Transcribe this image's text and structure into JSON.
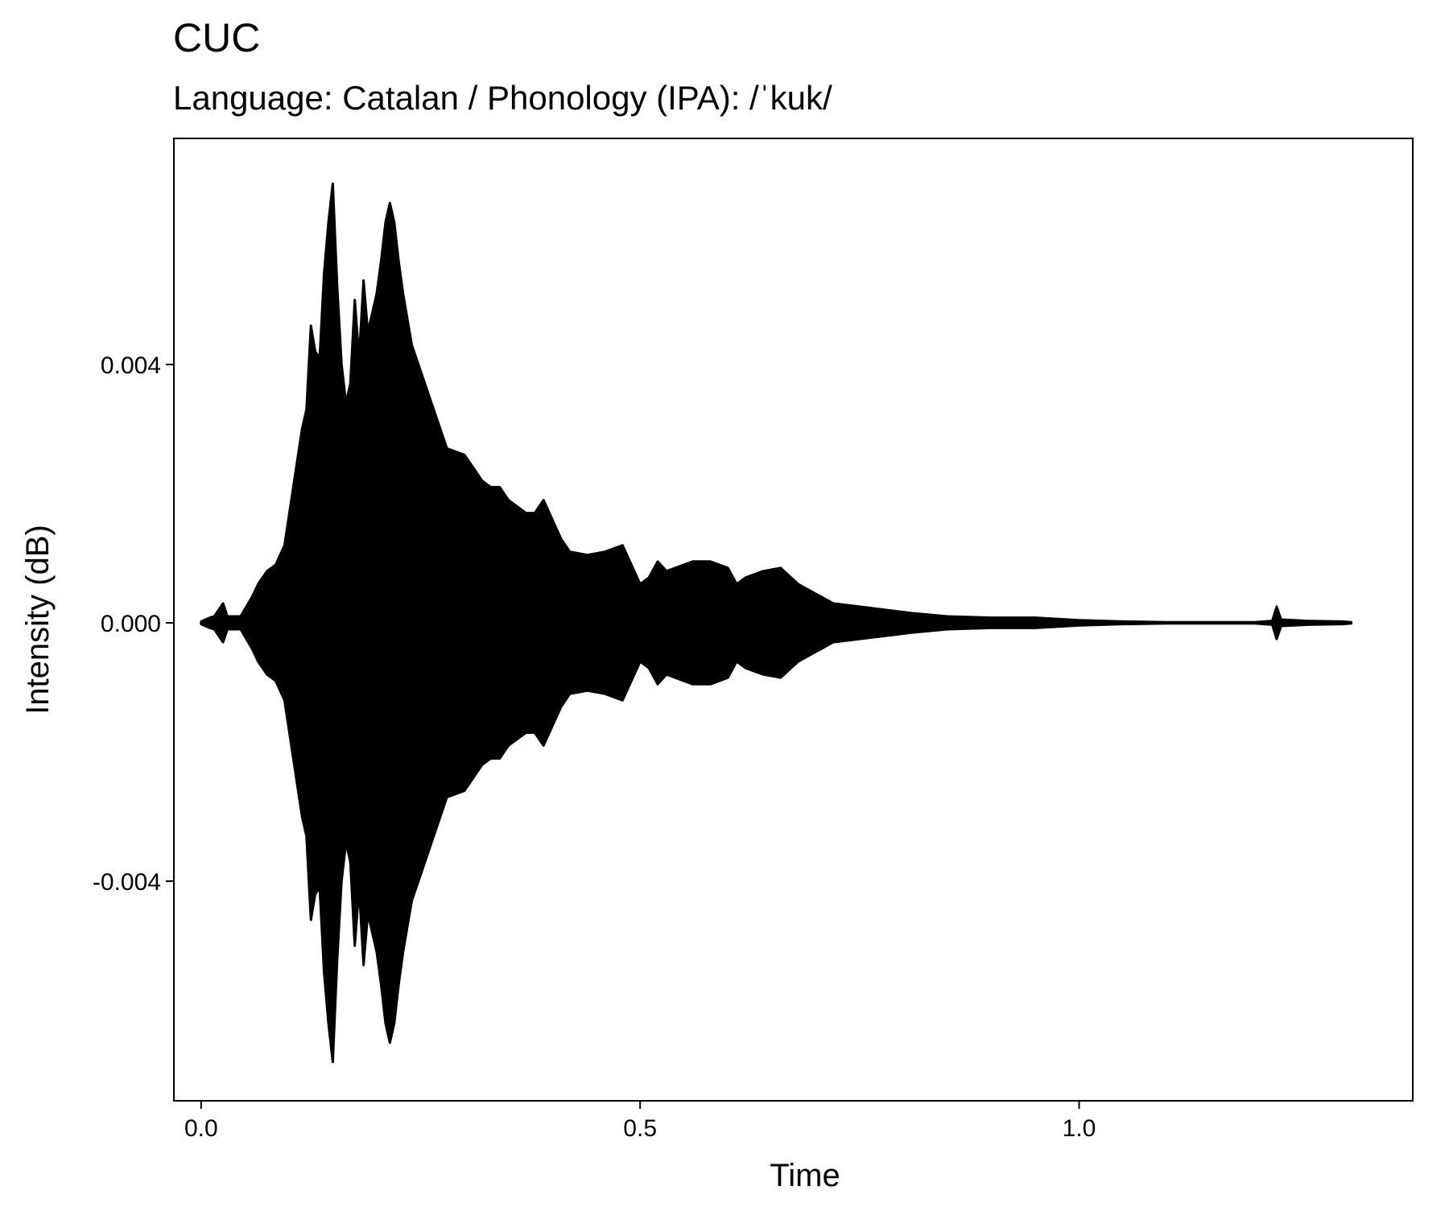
{
  "chart_data": {
    "type": "line",
    "title": "CUC",
    "subtitle": "Language: Catalan / Phonology (IPA): /ˈkuk/",
    "xlabel": "Time",
    "ylabel": "Intensity (dB)",
    "xlim": [
      -0.031,
      1.38
    ],
    "ylim": [
      -0.0074,
      0.0075
    ],
    "x_ticks": [
      0.0,
      0.5,
      1.0
    ],
    "x_tick_labels": [
      "0.0",
      "0.5",
      "1.0"
    ],
    "y_ticks": [
      -0.004,
      0.0,
      0.004
    ],
    "y_tick_labels": [
      "-0.004",
      "0.000",
      "0.004"
    ],
    "grid": false,
    "line_color": "#000000",
    "series": [
      {
        "envelope": [
          [
            0.0,
            2e-05
          ],
          [
            0.01,
            8e-05
          ],
          [
            0.015,
            0.0001
          ],
          [
            0.025,
            0.0003
          ],
          [
            0.03,
            0.0001
          ],
          [
            0.045,
            0.0001
          ],
          [
            0.058,
            0.0004
          ],
          [
            0.065,
            0.0006
          ],
          [
            0.075,
            0.0008
          ],
          [
            0.085,
            0.0009
          ],
          [
            0.095,
            0.0012
          ],
          [
            0.105,
            0.0021
          ],
          [
            0.115,
            0.003
          ],
          [
            0.12,
            0.0033
          ],
          [
            0.125,
            0.0046
          ],
          [
            0.13,
            0.0042
          ],
          [
            0.135,
            0.0041
          ],
          [
            0.14,
            0.0054
          ],
          [
            0.145,
            0.0062
          ],
          [
            0.15,
            0.0068
          ],
          [
            0.155,
            0.0052
          ],
          [
            0.16,
            0.004
          ],
          [
            0.165,
            0.0034
          ],
          [
            0.17,
            0.0037
          ],
          [
            0.175,
            0.005
          ],
          [
            0.18,
            0.0041
          ],
          [
            0.185,
            0.0053
          ],
          [
            0.19,
            0.0045
          ],
          [
            0.195,
            0.0048
          ],
          [
            0.2,
            0.0051
          ],
          [
            0.205,
            0.0056
          ],
          [
            0.21,
            0.0062
          ],
          [
            0.215,
            0.0065
          ],
          [
            0.22,
            0.0062
          ],
          [
            0.225,
            0.0056
          ],
          [
            0.23,
            0.0051
          ],
          [
            0.235,
            0.0047
          ],
          [
            0.24,
            0.0043
          ],
          [
            0.25,
            0.0039
          ],
          [
            0.26,
            0.0035
          ],
          [
            0.27,
            0.0031
          ],
          [
            0.28,
            0.0027
          ],
          [
            0.3,
            0.0026
          ],
          [
            0.31,
            0.0024
          ],
          [
            0.32,
            0.0022
          ],
          [
            0.33,
            0.0021
          ],
          [
            0.34,
            0.0021
          ],
          [
            0.35,
            0.0019
          ],
          [
            0.36,
            0.0018
          ],
          [
            0.37,
            0.0017
          ],
          [
            0.38,
            0.0017
          ],
          [
            0.39,
            0.0019
          ],
          [
            0.4,
            0.0016
          ],
          [
            0.41,
            0.0013
          ],
          [
            0.42,
            0.0011
          ],
          [
            0.44,
            0.00105
          ],
          [
            0.46,
            0.0011
          ],
          [
            0.48,
            0.0012
          ],
          [
            0.49,
            0.0009
          ],
          [
            0.5,
            0.0006
          ],
          [
            0.51,
            0.0007
          ],
          [
            0.52,
            0.00095
          ],
          [
            0.53,
            0.0008
          ],
          [
            0.54,
            0.00085
          ],
          [
            0.56,
            0.00095
          ],
          [
            0.58,
            0.00095
          ],
          [
            0.6,
            0.00085
          ],
          [
            0.61,
            0.0006
          ],
          [
            0.62,
            0.0007
          ],
          [
            0.64,
            0.0008
          ],
          [
            0.66,
            0.00085
          ],
          [
            0.68,
            0.0006
          ],
          [
            0.7,
            0.00045
          ],
          [
            0.72,
            0.0003
          ],
          [
            0.75,
            0.00025
          ],
          [
            0.78,
            0.0002
          ],
          [
            0.81,
            0.00015
          ],
          [
            0.85,
            0.0001
          ],
          [
            0.9,
            8e-05
          ],
          [
            0.95,
            8e-05
          ],
          [
            1.0,
            4e-05
          ],
          [
            1.05,
            2e-05
          ],
          [
            1.1,
            1e-05
          ],
          [
            1.2,
            1e-05
          ],
          [
            1.22,
            3e-05
          ],
          [
            1.225,
            0.00025
          ],
          [
            1.23,
            5e-05
          ],
          [
            1.26,
            3e-05
          ],
          [
            1.3,
            2e-05
          ],
          [
            1.31,
            1e-05
          ]
        ]
      }
    ]
  }
}
